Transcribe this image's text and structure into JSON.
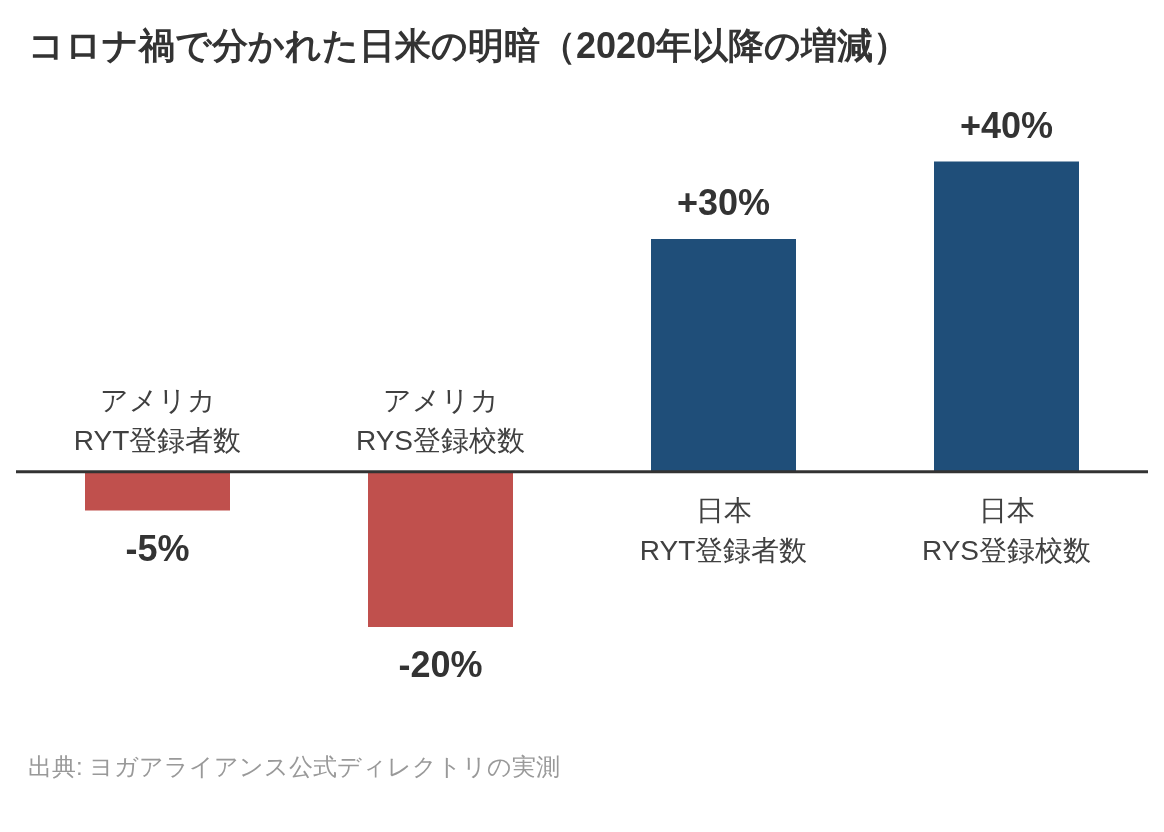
{
  "chart_data": {
    "type": "bar",
    "title": "コロナ禍で分かれた日米の明暗（2020年以降の増減）",
    "categories": [
      "アメリカ\nRYT登録者数",
      "アメリカ\nRYS登録校数",
      "日本\nRYT登録者数",
      "日本\nRYS登録校数"
    ],
    "values": [
      -5,
      -20,
      30,
      40
    ],
    "colors": [
      "#c0504d",
      "#c0504d",
      "#1f4e79",
      "#1f4e79"
    ],
    "value_labels": [
      "-5%",
      "-20%",
      "+30%",
      "+40%"
    ],
    "annotations": [
      "出典: ヨガアライアンス公式ディレクトリの実測"
    ]
  }
}
